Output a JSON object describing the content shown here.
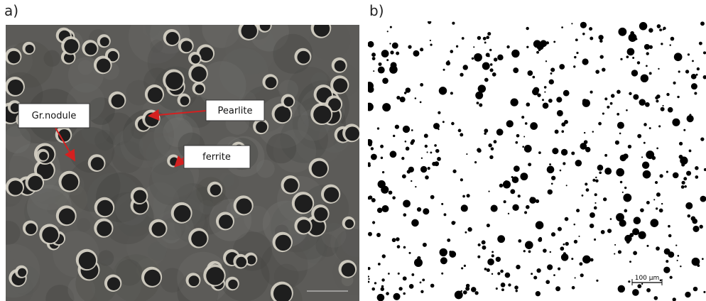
{
  "panels": [
    {
      "label": "a)",
      "annotations": [
        "Gr.nodule",
        "Pearlite",
        "ferrite"
      ]
    },
    {
      "label": "b)",
      "scale_bar": "100 µm"
    }
  ]
}
